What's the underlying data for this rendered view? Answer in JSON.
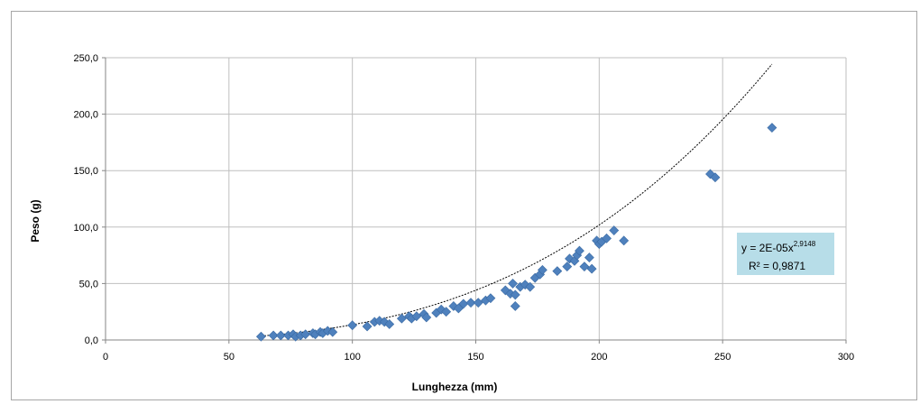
{
  "chart_data": {
    "type": "scatter",
    "xlabel": "Lunghezza (mm)",
    "ylabel": "Peso (g)",
    "xlim": [
      0,
      300
    ],
    "ylim": [
      0,
      250
    ],
    "x_ticks": [
      0,
      50,
      100,
      150,
      200,
      250,
      300
    ],
    "x_tick_labels": [
      "0",
      "50",
      "100",
      "150",
      "200",
      "250",
      "300"
    ],
    "y_ticks": [
      0,
      50,
      100,
      150,
      200,
      250
    ],
    "y_tick_labels": [
      "0,0",
      "50,0",
      "100,0",
      "150,0",
      "200,0",
      "250,0"
    ],
    "grid": true,
    "marker_color": "#4f81bd",
    "trendline": {
      "type": "power",
      "coefficient": 2e-05,
      "exponent": 2.9148,
      "equation_prefix": "y = 2E-05x",
      "equation_exponent": "2,9148",
      "r2_label": "R² = 0,9871",
      "box_color": "#b7dde8"
    },
    "points": [
      {
        "x": 63,
        "y": 3
      },
      {
        "x": 68,
        "y": 4
      },
      {
        "x": 71,
        "y": 4
      },
      {
        "x": 74,
        "y": 4
      },
      {
        "x": 76,
        "y": 5
      },
      {
        "x": 77,
        "y": 3
      },
      {
        "x": 79,
        "y": 4
      },
      {
        "x": 81,
        "y": 5
      },
      {
        "x": 84,
        "y": 6
      },
      {
        "x": 85,
        "y": 5
      },
      {
        "x": 87,
        "y": 7
      },
      {
        "x": 88,
        "y": 6
      },
      {
        "x": 90,
        "y": 8
      },
      {
        "x": 92,
        "y": 7
      },
      {
        "x": 100,
        "y": 13
      },
      {
        "x": 106,
        "y": 12
      },
      {
        "x": 109,
        "y": 16
      },
      {
        "x": 111,
        "y": 17
      },
      {
        "x": 113,
        "y": 16
      },
      {
        "x": 115,
        "y": 14
      },
      {
        "x": 120,
        "y": 19
      },
      {
        "x": 123,
        "y": 21
      },
      {
        "x": 124,
        "y": 19
      },
      {
        "x": 126,
        "y": 21
      },
      {
        "x": 129,
        "y": 23
      },
      {
        "x": 130,
        "y": 20
      },
      {
        "x": 134,
        "y": 24
      },
      {
        "x": 136,
        "y": 27
      },
      {
        "x": 138,
        "y": 25
      },
      {
        "x": 141,
        "y": 30
      },
      {
        "x": 143,
        "y": 28
      },
      {
        "x": 145,
        "y": 32
      },
      {
        "x": 148,
        "y": 33
      },
      {
        "x": 151,
        "y": 33
      },
      {
        "x": 154,
        "y": 35
      },
      {
        "x": 156,
        "y": 37
      },
      {
        "x": 162,
        "y": 44
      },
      {
        "x": 164,
        "y": 41
      },
      {
        "x": 165,
        "y": 50
      },
      {
        "x": 166,
        "y": 40
      },
      {
        "x": 166,
        "y": 30
      },
      {
        "x": 168,
        "y": 47
      },
      {
        "x": 170,
        "y": 49
      },
      {
        "x": 172,
        "y": 47
      },
      {
        "x": 174,
        "y": 55
      },
      {
        "x": 176,
        "y": 58
      },
      {
        "x": 177,
        "y": 62
      },
      {
        "x": 183,
        "y": 61
      },
      {
        "x": 187,
        "y": 65
      },
      {
        "x": 188,
        "y": 72
      },
      {
        "x": 190,
        "y": 70
      },
      {
        "x": 191,
        "y": 75
      },
      {
        "x": 192,
        "y": 79
      },
      {
        "x": 194,
        "y": 65
      },
      {
        "x": 196,
        "y": 73
      },
      {
        "x": 197,
        "y": 63
      },
      {
        "x": 199,
        "y": 88
      },
      {
        "x": 200,
        "y": 85
      },
      {
        "x": 201,
        "y": 87
      },
      {
        "x": 203,
        "y": 90
      },
      {
        "x": 206,
        "y": 97
      },
      {
        "x": 210,
        "y": 88
      },
      {
        "x": 245,
        "y": 147
      },
      {
        "x": 247,
        "y": 144
      },
      {
        "x": 270,
        "y": 188
      }
    ]
  }
}
